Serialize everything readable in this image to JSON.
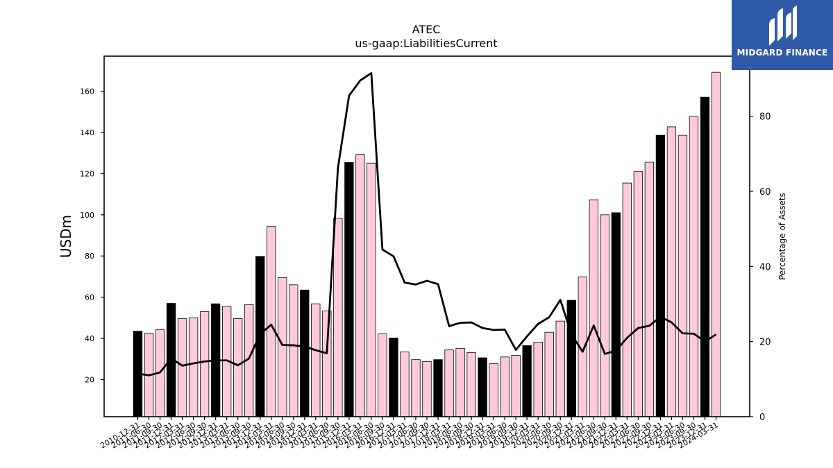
{
  "brand": {
    "name": "MIDGARD FINANCE",
    "icon": "midgard-finance-logo-icon",
    "color": "#2f5aa8"
  },
  "chart_data": {
    "type": "bar",
    "title": "ATEC",
    "subtitle": "us-gaap:LiabilitiesCurrent",
    "ylabel": "USDm",
    "y2label": "Percentage of Assets",
    "ylim": [
      2,
      177
    ],
    "y2lim": [
      0,
      96
    ],
    "yticks": [
      20,
      40,
      60,
      80,
      100,
      120,
      140,
      160
    ],
    "y2ticks": [
      0,
      20,
      40,
      60,
      80
    ],
    "grid": false,
    "legend": "none",
    "colors": {
      "annual": "#000000",
      "quarterly": "#ffc9dd",
      "line": "#000000"
    },
    "categories": [
      "2010-12-31",
      "2011-06-30",
      "2011-09-30",
      "2011-12-31",
      "2012-03-31",
      "2012-06-30",
      "2012-09-30",
      "2012-12-31",
      "2013-03-31",
      "2013-06-30",
      "2013-09-30",
      "2013-12-31",
      "2014-03-31",
      "2014-06-30",
      "2014-09-30",
      "2014-12-31",
      "2015-03-31",
      "2015-06-30",
      "2015-09-30",
      "2015-12-31",
      "2016-03-31",
      "2016-06-30",
      "2016-09-30",
      "2016-12-31",
      "2017-03-31",
      "2017-06-30",
      "2017-09-30",
      "2017-12-31",
      "2018-03-31",
      "2018-06-30",
      "2018-09-30",
      "2018-12-31",
      "2019-03-31",
      "2019-06-30",
      "2019-09-30",
      "2019-12-31",
      "2020-03-31",
      "2020-06-30",
      "2020-09-30",
      "2020-12-31",
      "2021-03-31",
      "2021-06-30",
      "2021-09-30",
      "2021-12-31",
      "2022-03-31",
      "2022-06-30",
      "2022-09-30",
      "2022-12-31",
      "2023-03-31",
      "2023-06-30",
      "2023-09-30",
      "2023-12-31",
      "2024-03-31"
    ],
    "annual": [
      1,
      0,
      0,
      1,
      0,
      0,
      0,
      1,
      0,
      0,
      0,
      1,
      0,
      0,
      0,
      1,
      0,
      0,
      0,
      1,
      0,
      0,
      0,
      1,
      0,
      0,
      0,
      1,
      0,
      0,
      0,
      1,
      0,
      0,
      0,
      1,
      0,
      0,
      0,
      1,
      0,
      0,
      0,
      1,
      0,
      0,
      0,
      1,
      0,
      0,
      0,
      1,
      0
    ],
    "series": [
      {
        "name": "LiabilitiesCurrent",
        "axis": "left",
        "values": [
          43.5,
          42.5,
          44.2,
          57.0,
          49.6,
          50.0,
          53.0,
          56.8,
          55.5,
          49.6,
          56.4,
          79.8,
          94.3,
          69.5,
          66.0,
          63.5,
          56.8,
          53.3,
          98.3,
          125.4,
          129.3,
          125.1,
          42.2,
          40.2,
          33.4,
          29.7,
          28.8,
          29.7,
          34.4,
          35.2,
          33.2,
          30.6,
          27.7,
          31.0,
          31.8,
          36.5,
          38.2,
          43.0,
          48.4,
          58.5,
          69.9,
          107.3,
          100.0,
          101.0,
          115.4,
          120.9,
          125.5,
          138.6,
          142.7,
          138.6,
          147.7,
          157.1,
          169.2
        ]
      },
      {
        "name": "Percentage of Assets",
        "axis": "right",
        "type": "line",
        "values": [
          11.5,
          11.0,
          11.8,
          15.5,
          13.6,
          14.2,
          14.7,
          15.0,
          15.0,
          13.7,
          15.5,
          22.0,
          24.5,
          19.1,
          19.0,
          18.7,
          17.7,
          16.9,
          66.3,
          85.5,
          89.5,
          91.5,
          44.5,
          42.7,
          35.7,
          35.2,
          36.2,
          35.3,
          24.1,
          25.0,
          25.1,
          23.6,
          23.1,
          23.2,
          17.8,
          21.4,
          24.7,
          26.5,
          31.1,
          21.9,
          17.3,
          24.3,
          16.7,
          17.6,
          21.0,
          23.6,
          24.2,
          26.6,
          25.1,
          22.2,
          22.1,
          20.0,
          21.9
        ]
      }
    ]
  }
}
